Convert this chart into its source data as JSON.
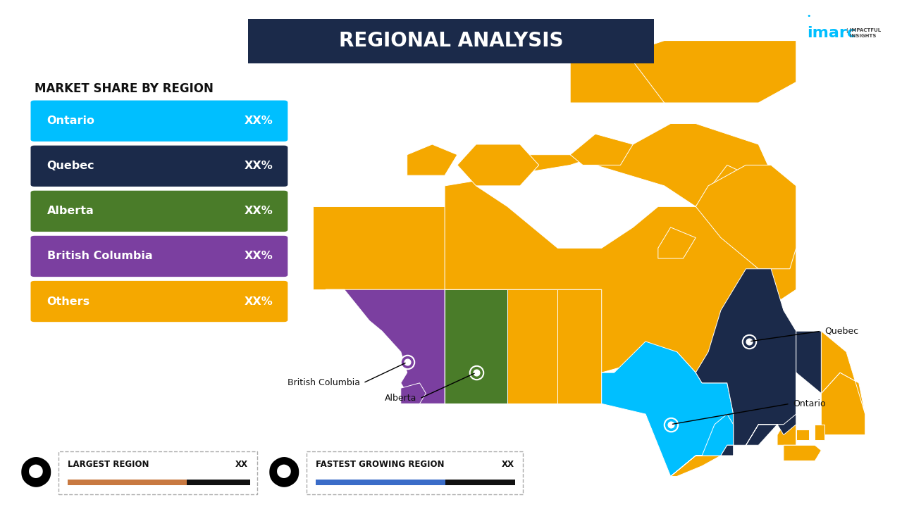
{
  "title": "REGIONAL ANALYSIS",
  "subtitle": "MARKET SHARE BY REGION",
  "regions": [
    "Ontario",
    "Quebec",
    "Alberta",
    "British Columbia",
    "Others"
  ],
  "values": [
    "XX%",
    "XX%",
    "XX%",
    "XX%",
    "XX%"
  ],
  "bar_colors": [
    "#00BFFF",
    "#1B2A4A",
    "#4A7C29",
    "#7B3FA0",
    "#F5A800"
  ],
  "background_color": "#FFFFFF",
  "title_bg_color": "#1B2A4A",
  "title_text_color": "#FFFFFF",
  "largest_region_label": "LARGEST REGION",
  "largest_region_value": "XX",
  "largest_region_bar_color": "#C87941",
  "fastest_growing_label": "FASTEST GROWING REGION",
  "fastest_growing_value": "XX",
  "fastest_growing_bar_color": "#3A6CC8",
  "map_colors": {
    "default": "#F5A800",
    "ontario": "#00BFFF",
    "quebec": "#1B2A4A",
    "alberta": "#4A7C29",
    "british_columbia": "#7B3FA0"
  },
  "imarc_color": "#00BFFF"
}
